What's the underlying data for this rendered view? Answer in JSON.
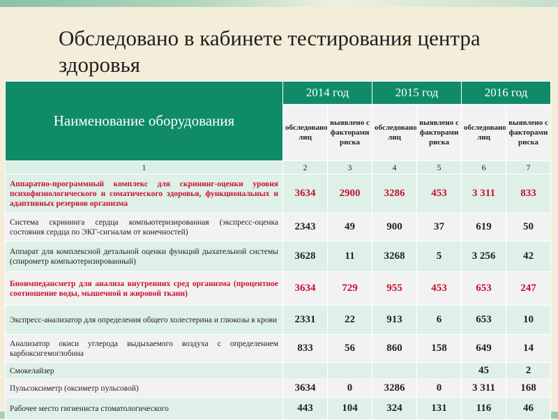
{
  "title": "Обследовано в кабинете тестирования центра здоровья",
  "table": {
    "equipment_header": "Наименование оборудования",
    "years": [
      "2014 год",
      "2015 год",
      "2016 год"
    ],
    "sub_headers": {
      "examined": "обследовано лиц",
      "risk": "выявлено с факторами риска"
    },
    "column_numbers": [
      "1",
      "2",
      "3",
      "4",
      "5",
      "6",
      "7"
    ],
    "rows": [
      {
        "name": "Аппаратно-программный комплекс для скрининг-оценки уровня психофизиологического и соматического здоровья, функциональных и адаптивных резервов организма",
        "values": [
          "3634",
          "2900",
          "3286",
          "453",
          "3 311",
          "833"
        ],
        "highlight": true
      },
      {
        "name": "Система скрининга сердца компьютеризированная (экспресс-оценка состояния сердца по ЭКГ-сигналам от конечностей)",
        "values": [
          "2343",
          "49",
          "900",
          "37",
          "619",
          "50"
        ],
        "highlight": false
      },
      {
        "name": "Аппарат для комплексной детальной оценки функций дыхательной системы (спирометр компьютеризированный)",
        "values": [
          "3628",
          "11",
          "3268",
          "5",
          "3 256",
          "42"
        ],
        "highlight": false
      },
      {
        "name": "Биоимпедансметр для анализа внутренних сред организма (процентное соотношение воды, мышечной и жировой ткани)",
        "values": [
          "3634",
          "729",
          "955",
          "453",
          "653",
          "247"
        ],
        "highlight": true
      },
      {
        "name": "Экспресс-анализатор для определения общего холестерина и глюкозы в крови",
        "values": [
          "2331",
          "22",
          "913",
          "6",
          "653",
          "10"
        ],
        "highlight": false
      },
      {
        "name": "Анализатор окиси углерода выдыхаемого воздуха с определением карбоксигемоглобина",
        "values": [
          "833",
          "56",
          "860",
          "158",
          "649",
          "14"
        ],
        "highlight": false
      },
      {
        "name": "Смокелайзер",
        "values": [
          "",
          "",
          "",
          "",
          "45",
          "2"
        ],
        "highlight": false
      },
      {
        "name": "Пульсоксиметр (оксиметр пульсовой)",
        "values": [
          "3634",
          "0",
          "3286",
          "0",
          "3 311",
          "168"
        ],
        "highlight": false
      },
      {
        "name": "Рабочее место гигиениста стоматологического",
        "values": [
          "443",
          "104",
          "324",
          "131",
          "116",
          "46"
        ],
        "highlight": false
      }
    ]
  },
  "colors": {
    "header_green": "#0f8c67",
    "highlight_red": "#c8102e",
    "background": "#f3edda"
  }
}
